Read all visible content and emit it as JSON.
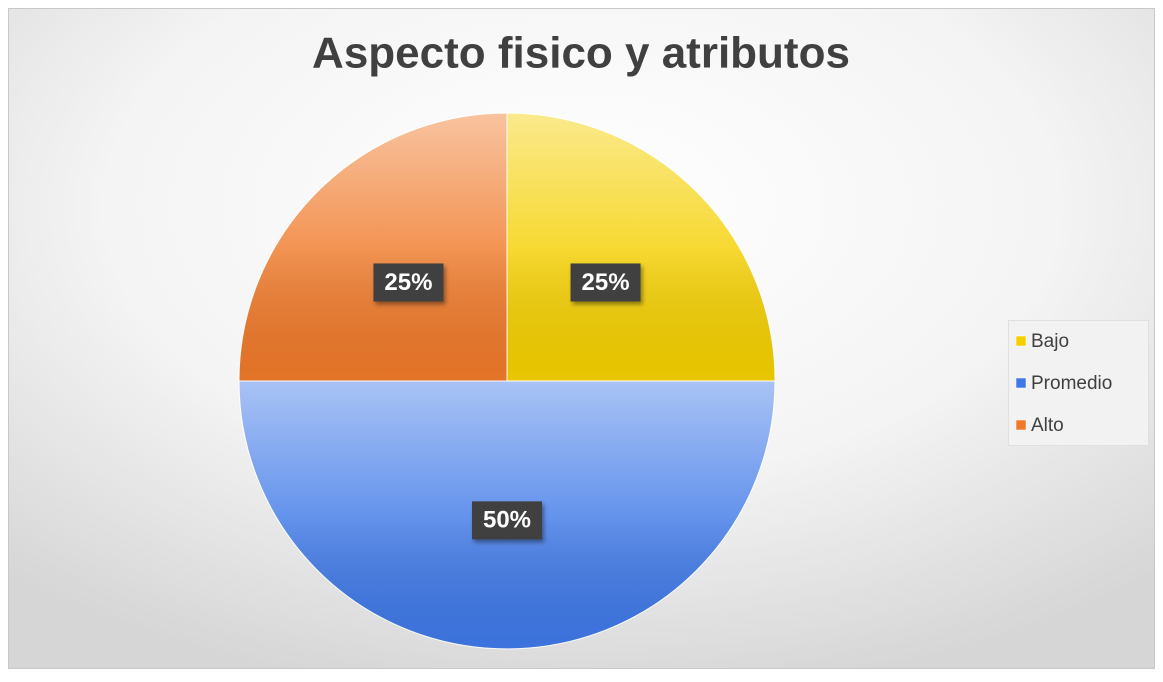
{
  "chart_data": {
    "type": "pie",
    "title": "Aspecto fisico y atributos",
    "categories": [
      "Bajo",
      "Promedio",
      "Alto"
    ],
    "values": [
      25,
      50,
      25
    ],
    "value_labels": [
      "25%",
      "50%",
      "25%"
    ],
    "colors": [
      "#f5d000",
      "#3f79e8",
      "#f07a2a"
    ],
    "legend": "right"
  }
}
